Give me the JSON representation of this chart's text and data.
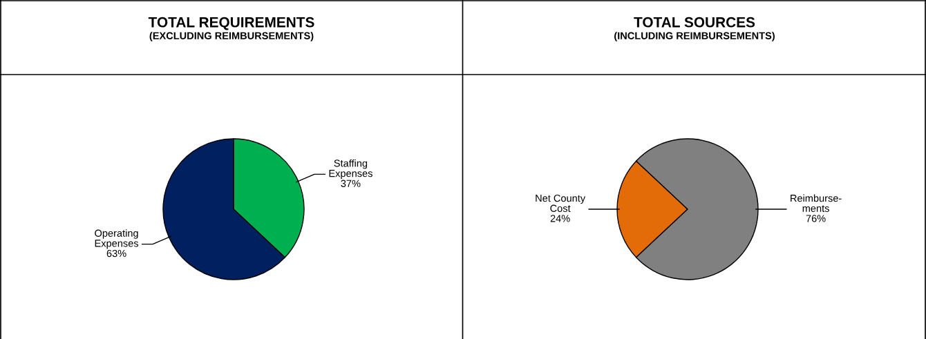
{
  "chart_data": [
    {
      "type": "pie",
      "title": "TOTAL REQUIREMENTS",
      "subtitle": "(EXCLUDING REIMBURSEMENTS)",
      "categories": [
        "Staffing\nExpenses",
        "Operating\nExpenses"
      ],
      "values": [
        37,
        63
      ],
      "colors": [
        "#00b050",
        "#002060"
      ],
      "value_labels": [
        "37%",
        "63%"
      ]
    },
    {
      "type": "pie",
      "title": "TOTAL SOURCES",
      "subtitle": "(INCLUDING REIMBURSEMENTS)",
      "categories": [
        "Net County\nCost",
        "Reimburse-\nments"
      ],
      "values": [
        24,
        76
      ],
      "colors": [
        "#e36c09",
        "#808080"
      ],
      "value_labels": [
        "24%",
        "76%"
      ]
    }
  ]
}
